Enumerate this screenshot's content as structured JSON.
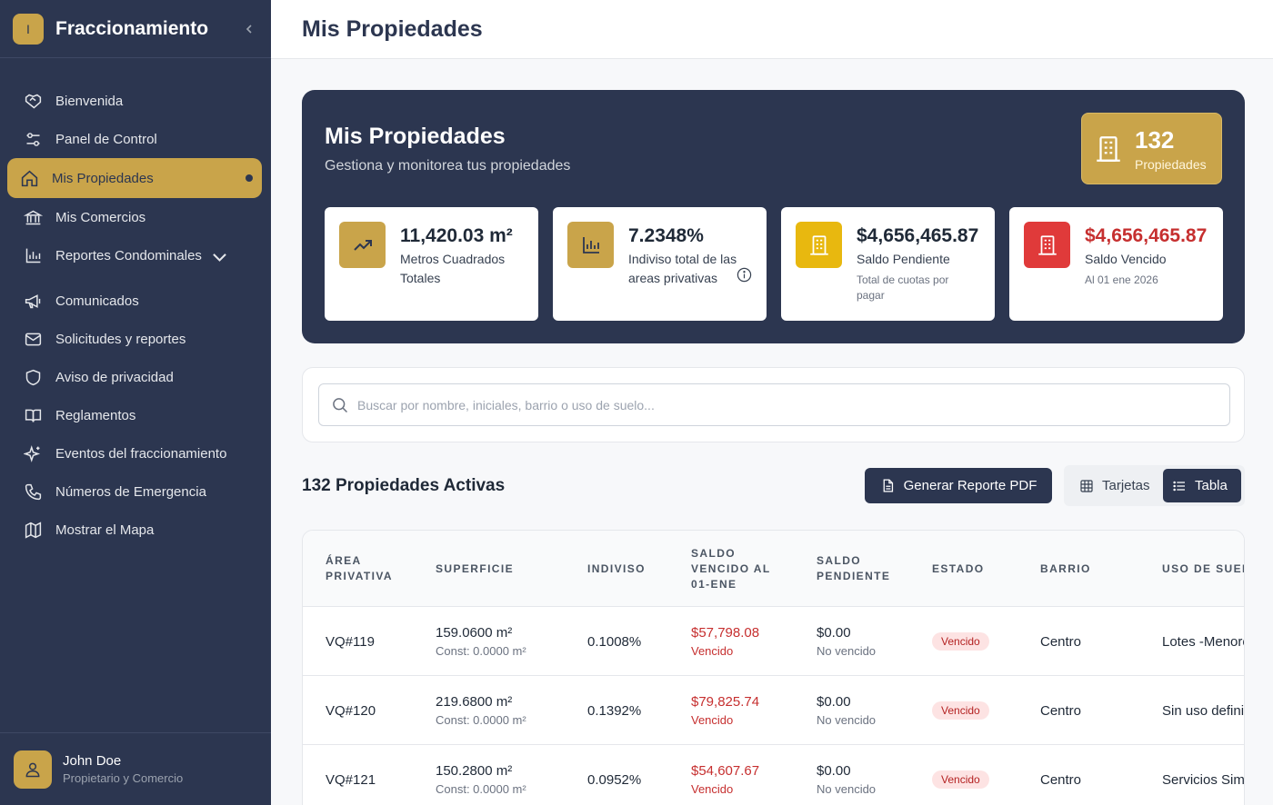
{
  "sidebar": {
    "logo_letter": "I",
    "title": "Fraccionamiento",
    "items": [
      {
        "label": "Bienvenida",
        "icon": "handshake-icon"
      },
      {
        "label": "Panel de Control",
        "icon": "sliders-icon"
      },
      {
        "label": "Mis Propiedades",
        "icon": "home-icon"
      },
      {
        "label": "Mis Comercios",
        "icon": "bank-icon"
      },
      {
        "label": "Reportes Condominales",
        "icon": "bar-chart-icon"
      },
      {
        "label": "Comunicados",
        "icon": "megaphone-icon"
      },
      {
        "label": "Solicitudes y reportes",
        "icon": "mail-icon"
      },
      {
        "label": "Aviso de privacidad",
        "icon": "shield-icon"
      },
      {
        "label": "Reglamentos",
        "icon": "book-icon"
      },
      {
        "label": "Eventos del fraccionamiento",
        "icon": "sparkles-icon"
      },
      {
        "label": "Números de Emergencia",
        "icon": "phone-icon"
      },
      {
        "label": "Mostrar el Mapa",
        "icon": "map-icon"
      }
    ],
    "user": {
      "name": "John Doe",
      "role": "Propietario y Comercio"
    }
  },
  "header": {
    "title": "Mis Propiedades"
  },
  "hero": {
    "title": "Mis Propiedades",
    "subtitle": "Gestiona y monitorea tus propiedades",
    "count": "132",
    "count_label": "Propiedades"
  },
  "stats": [
    {
      "value": "11,420.03 m²",
      "label": "Metros Cuadrados Totales",
      "note": "",
      "color": "#c9a44a"
    },
    {
      "value": "7.2348%",
      "label": "Indiviso total de las areas privativas",
      "note": "",
      "color": "#c9a44a"
    },
    {
      "value": "$4,656,465.87",
      "label": "Saldo Pendiente",
      "note": "Total de cuotas por pagar",
      "color": "#e8b80f"
    },
    {
      "value": "$4,656,465.87",
      "label": "Saldo Vencido",
      "note": "Al 01 ene 2026",
      "color": "#e03a3a"
    }
  ],
  "search": {
    "placeholder": "Buscar por nombre, iniciales, barrio o uso de suelo...",
    "value": ""
  },
  "list": {
    "title": "132 Propiedades Activas",
    "pdf_button": "Generar Reporte PDF",
    "view_cards": "Tarjetas",
    "view_table": "Tabla"
  },
  "table": {
    "headers": [
      "ÁREA PRIVATIVA",
      "SUPERFICIE",
      "INDIVISO",
      "SALDO VENCIDO AL 01-ENE",
      "SALDO PENDIENTE",
      "ESTADO",
      "BARRIO",
      "USO DE SUELO"
    ],
    "rows": [
      {
        "area": "VQ#119",
        "superficie": "159.0600 m²",
        "const": "Const: 0.0000 m²",
        "indiviso": "0.1008%",
        "vencido": "$57,798.08",
        "vencido_label": "Vencido",
        "pendiente": "$0.00",
        "pendiente_label": "No vencido",
        "estado": "Vencido",
        "barrio": "Centro",
        "uso": "Lotes -Menores"
      },
      {
        "area": "VQ#120",
        "superficie": "219.6800 m²",
        "const": "Const: 0.0000 m²",
        "indiviso": "0.1392%",
        "vencido": "$79,825.74",
        "vencido_label": "Vencido",
        "pendiente": "$0.00",
        "pendiente_label": "No vencido",
        "estado": "Vencido",
        "barrio": "Centro",
        "uso": "Sin uso definido"
      },
      {
        "area": "VQ#121",
        "superficie": "150.2800 m²",
        "const": "Const: 0.0000 m²",
        "indiviso": "0.0952%",
        "vencido": "$54,607.67",
        "vencido_label": "Vencido",
        "pendiente": "$0.00",
        "pendiente_label": "No vencido",
        "estado": "Vencido",
        "barrio": "Centro",
        "uso": "Servicios Simples"
      }
    ]
  }
}
